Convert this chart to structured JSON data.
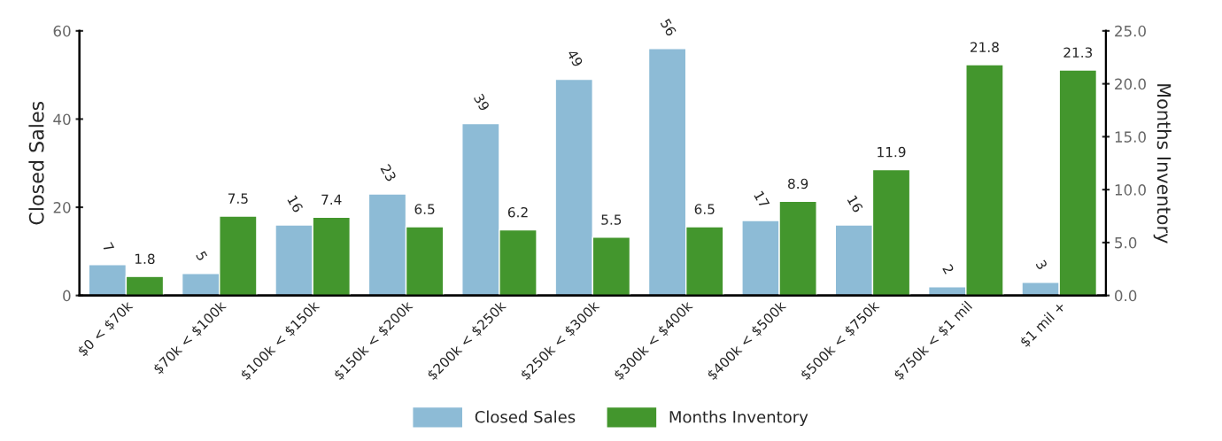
{
  "chart_data": {
    "type": "bar",
    "xlabel": null,
    "ylabel": "Closed Sales",
    "y2label": "Months Inventory",
    "categories": [
      "$0 < $70k",
      "$70k < $100k",
      "$100k < $150k",
      "$150k < $200k",
      "$200k < $250k",
      "$250k < $300k",
      "$300k < $400k",
      "$400k < $500k",
      "$500k < $750k",
      "$750k < $1 mil",
      "$1 mil +"
    ],
    "series": [
      {
        "name": "Closed Sales",
        "color": "#8dbbd6",
        "values": [
          7,
          5,
          16,
          23,
          39,
          49,
          56,
          17,
          16,
          2,
          3
        ]
      },
      {
        "name": "Months Inventory",
        "color": "#43962d",
        "axis": "y2",
        "values": [
          1.8,
          7.5,
          7.4,
          6.5,
          6.2,
          5.5,
          6.5,
          8.9,
          11.9,
          21.8,
          21.3
        ]
      }
    ],
    "ylim": [
      0,
      60
    ],
    "yticks": [
      0,
      20,
      40,
      60
    ],
    "y2lim": [
      0,
      25
    ],
    "y2ticks": [
      {
        "value": 0,
        "label": "0.0"
      },
      {
        "value": 5,
        "label": "5.0"
      },
      {
        "value": 10,
        "label": "10.0"
      },
      {
        "value": 15,
        "label": "15.0"
      },
      {
        "value": 20,
        "label": "20.0"
      },
      {
        "value": 25,
        "label": "25.0"
      }
    ],
    "data_labels": true,
    "grid": false,
    "legend": "bottom"
  }
}
